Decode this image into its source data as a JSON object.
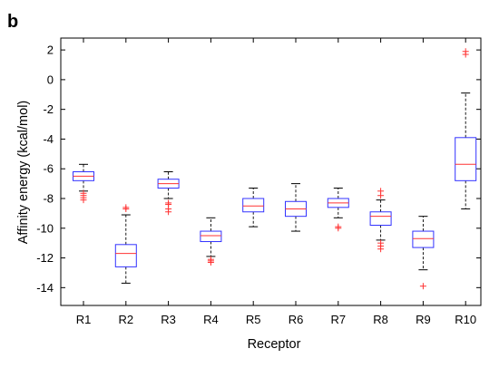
{
  "panel_label": "b",
  "chart_data": {
    "type": "box",
    "xlabel": "Receptor",
    "ylabel": "Affinity energy (kcal/mol)",
    "ylim": [
      -15.2,
      2.8
    ],
    "yticks": [
      2,
      0,
      -2,
      -4,
      -6,
      -8,
      -10,
      -12,
      -14
    ],
    "grid": false,
    "colors": {
      "box": "#3333ff",
      "median": "#ff3333",
      "whisker": "#000000",
      "outlier": "#ff3333"
    },
    "categories": [
      "R1",
      "R2",
      "R3",
      "R4",
      "R5",
      "R6",
      "R7",
      "R8",
      "R9",
      "R10"
    ],
    "boxes": [
      {
        "label": "R1",
        "whisker_low": -7.5,
        "q1": -6.8,
        "median": -6.5,
        "q3": -6.2,
        "whisker_high": -5.7,
        "outliers": [
          -7.65,
          -7.8,
          -7.95,
          -8.1
        ]
      },
      {
        "label": "R2",
        "whisker_low": -13.7,
        "q1": -12.6,
        "median": -11.7,
        "q3": -11.1,
        "whisker_high": -9.1,
        "outliers": [
          -8.6,
          -8.7
        ]
      },
      {
        "label": "R3",
        "whisker_low": -8.0,
        "q1": -7.3,
        "median": -7.0,
        "q3": -6.7,
        "whisker_high": -6.2,
        "outliers": [
          -8.3,
          -8.4,
          -8.7,
          -8.9
        ]
      },
      {
        "label": "R4",
        "whisker_low": -11.9,
        "q1": -10.9,
        "median": -10.5,
        "q3": -10.2,
        "whisker_high": -9.3,
        "outliers": [
          -12.1,
          -12.2,
          -12.3
        ]
      },
      {
        "label": "R5",
        "whisker_low": -9.9,
        "q1": -8.9,
        "median": -8.5,
        "q3": -8.0,
        "whisker_high": -7.3,
        "outliers": []
      },
      {
        "label": "R6",
        "whisker_low": -10.2,
        "q1": -9.2,
        "median": -8.7,
        "q3": -8.2,
        "whisker_high": -7.0,
        "outliers": []
      },
      {
        "label": "R7",
        "whisker_low": -9.3,
        "q1": -8.6,
        "median": -8.3,
        "q3": -8.0,
        "whisker_high": -7.3,
        "outliers": [
          -9.9,
          -10.0
        ]
      },
      {
        "label": "R8",
        "whisker_low": -10.8,
        "q1": -9.8,
        "median": -9.2,
        "q3": -8.9,
        "whisker_high": -8.1,
        "outliers": [
          -7.5,
          -7.8,
          -11.0,
          -11.2,
          -11.4
        ]
      },
      {
        "label": "R9",
        "whisker_low": -12.8,
        "q1": -11.3,
        "median": -10.7,
        "q3": -10.2,
        "whisker_high": -9.2,
        "outliers": [
          -13.9
        ]
      },
      {
        "label": "R10",
        "whisker_low": -8.7,
        "q1": -6.8,
        "median": -5.7,
        "q3": -3.9,
        "whisker_high": -0.9,
        "outliers": [
          1.7,
          1.9
        ]
      }
    ]
  }
}
